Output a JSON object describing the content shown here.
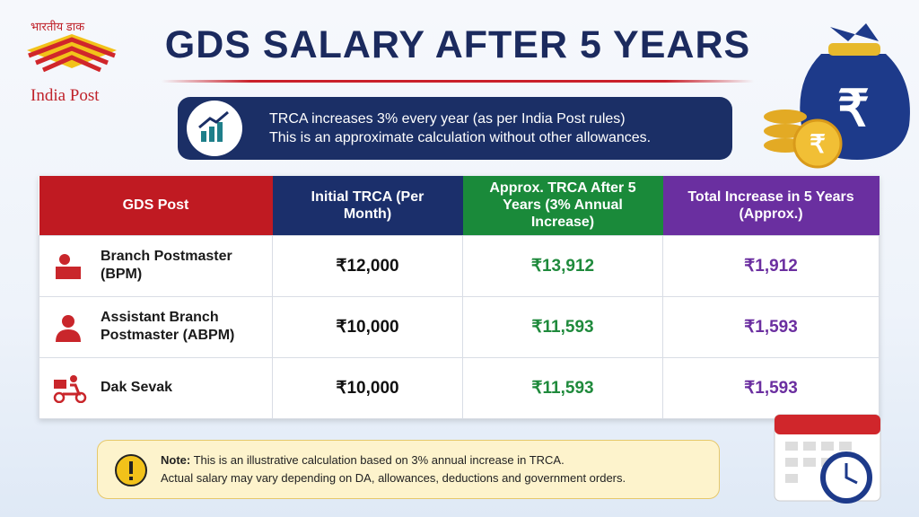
{
  "logo": {
    "hindi": "भारतीय डाक",
    "name": "India Post"
  },
  "header": {
    "title": "GDS SALARY AFTER 5 YEARS"
  },
  "info": {
    "lines": [
      "TRCA increases 3% every year (as per India Post rules)",
      "This is an approximate calculation without other allowances."
    ]
  },
  "table": {
    "columns": [
      "GDS Post",
      "Initial TRCA (Per Month)",
      "Approx. TRCA After 5 Years (3% Annual Increase)",
      "Total Increase in 5 Years (Approx.)"
    ],
    "rows": [
      [
        "Branch Postmaster (BPM)",
        "₹12,000",
        "₹13,912",
        "₹1,912"
      ],
      [
        "Assistant Branch Postmaster (ABPM)",
        "₹10,000",
        "₹11,593",
        "₹1,593"
      ],
      [
        "Dak Sevak",
        "₹10,000",
        "₹11,593",
        "₹1,593"
      ]
    ]
  },
  "note": {
    "label": "Note:",
    "lines": [
      "This is an illustrative calculation based on 3% annual increase in TRCA.",
      "Actual salary may vary depending on DA, allowances, deductions and government orders."
    ]
  }
}
